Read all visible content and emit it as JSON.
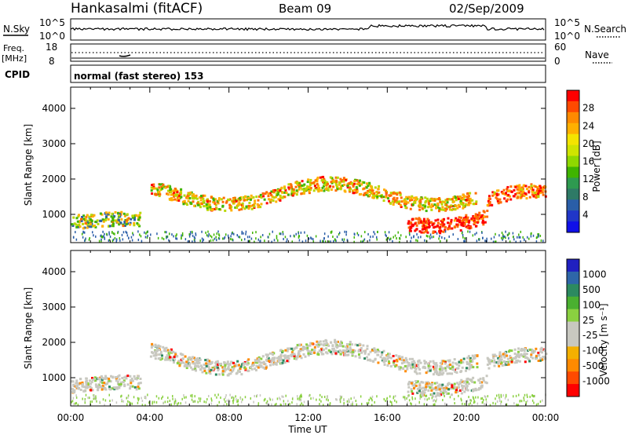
{
  "header": {
    "station": "Hankasalmi (fitACF)",
    "beam": "Beam 09",
    "date": "02/Sep/2009"
  },
  "noise_panel": {
    "left_label": "N.Sky",
    "left_top_tick": "10^5",
    "left_bottom_tick": "10^0",
    "right_label": "N.Search",
    "right_top_tick": "10^5",
    "right_bottom_tick": "10^0"
  },
  "freq_panel": {
    "left_label_1": "Freq.",
    "left_label_2": "[MHz]",
    "left_top_tick": "18",
    "left_bottom_tick": "8",
    "right_label": "Nave",
    "right_top_tick": "60",
    "right_bottom_tick": "0"
  },
  "cpid_panel": {
    "label": "CPID",
    "text": "normal (fast stereo) 153"
  },
  "chart_data": [
    {
      "type": "heatmap",
      "title": "",
      "variable": "Power",
      "colorbar_label": "Power [dB]",
      "colorbar_ticks": [
        "28",
        "24",
        "20",
        "16",
        "12",
        "8",
        "4"
      ],
      "colorbar_colors": [
        "#ff0000",
        "#ff4a00",
        "#ff8a00",
        "#ffb000",
        "#f4e400",
        "#cfe400",
        "#8fd800",
        "#3fb400",
        "#2e9a50",
        "#2e7a66",
        "#2a5ea8",
        "#2036c8",
        "#1010e8"
      ],
      "ylabel": "Slant Range [km]",
      "y_ticks": [
        "1000",
        "2000",
        "3000",
        "4000"
      ],
      "ylim": [
        200,
        4600
      ],
      "xlim_hours": [
        0,
        24
      ]
    },
    {
      "type": "heatmap",
      "title": "",
      "variable": "Velocity",
      "colorbar_label": "Velocity [m s⁻¹]",
      "colorbar_ticks": [
        "1000",
        "500",
        "100",
        "25",
        "-25",
        "-100",
        "-500",
        "-1000"
      ],
      "colorbar_colors": [
        "#2020c0",
        "#2e66a8",
        "#2c8a60",
        "#4ab030",
        "#8ad040",
        "#c8c8c0",
        "#c8c8c0",
        "#f4b000",
        "#ff8a00",
        "#ff4a00",
        "#ff0000"
      ],
      "ylabel": "Slant Range [km]",
      "y_ticks": [
        "1000",
        "2000",
        "3000",
        "4000"
      ],
      "ylim": [
        200,
        4600
      ],
      "xlim_hours": [
        0,
        24
      ]
    }
  ],
  "x_axis": {
    "tick_labels": [
      "00:00",
      "04:00",
      "08:00",
      "12:00",
      "16:00",
      "20:00",
      "00:00"
    ],
    "label": "Time UT"
  }
}
